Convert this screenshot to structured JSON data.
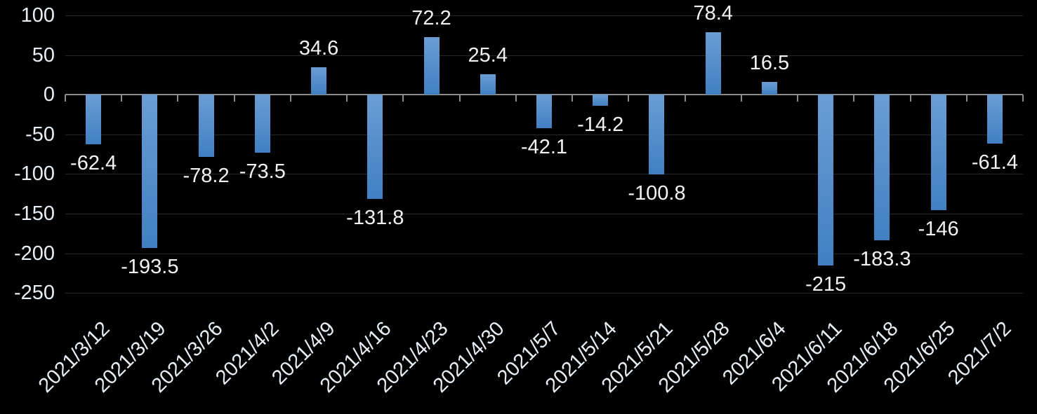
{
  "chart_data": {
    "type": "bar",
    "title": "",
    "xlabel": "",
    "ylabel": "",
    "categories": [
      "2021/3/12",
      "2021/3/19",
      "2021/3/26",
      "2021/4/2",
      "2021/4/9",
      "2021/4/16",
      "2021/4/23",
      "2021/4/30",
      "2021/5/7",
      "2021/5/14",
      "2021/5/21",
      "2021/5/28",
      "2021/6/4",
      "2021/6/11",
      "2021/6/18",
      "2021/6/25",
      "2021/7/2"
    ],
    "values": [
      -62.4,
      -193.5,
      -78.2,
      -73.5,
      34.6,
      -131.8,
      72.2,
      25.4,
      -42.1,
      -14.2,
      -100.8,
      78.4,
      16.5,
      -215,
      -183.3,
      -146,
      -61.4
    ],
    "data_labels": [
      "-62.4",
      "-193.5",
      "-78.2",
      "-73.5",
      "34.6",
      "-131.8",
      "72.2",
      "25.4",
      "-42.1",
      "-14.2",
      "-100.8",
      "78.4",
      "16.5",
      "-215",
      "-183.3",
      "-146",
      "-61.4"
    ],
    "ytick_labels": [
      "100",
      "50",
      "0",
      "-50",
      "-100",
      "-150",
      "-200",
      "-250"
    ],
    "ytick_values": [
      100,
      50,
      0,
      -50,
      -100,
      -150,
      -200,
      -250
    ],
    "ylim": [
      -250,
      100
    ],
    "grid": true,
    "legend_position": "none",
    "x_label_rotation_deg": 45,
    "colors": {
      "background": "#000000",
      "bar_gradient_top": "#6B9DD4",
      "bar_gradient_bottom": "#4080C2",
      "gridline": "#272727",
      "axis_line": "#8C8C8C",
      "axis_text": "#E8EEF6",
      "data_label_text": "#F2F2F2"
    }
  }
}
